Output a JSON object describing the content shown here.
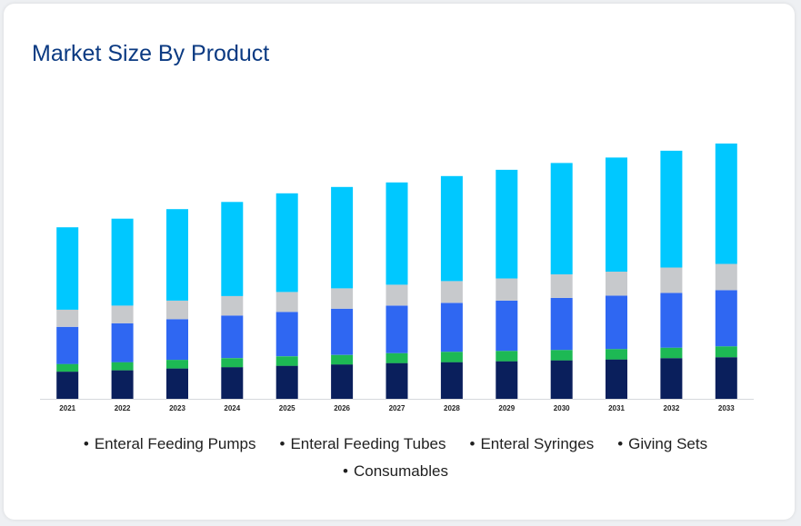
{
  "title": "Market Size By Product",
  "colors": {
    "title": "#0b3a82",
    "consumables": "#0a1f5c",
    "giving_sets": "#1db954",
    "enteral_syringes": "#2f67f2",
    "enteral_feeding_tubes": "#c7c9cc",
    "enteral_feeding_pumps": "#00c8ff"
  },
  "chart_data": {
    "type": "bar",
    "stacked": true,
    "categories": [
      "2021",
      "2022",
      "2023",
      "2024",
      "2025",
      "2026",
      "2027",
      "2028",
      "2029",
      "2030",
      "2031",
      "2032",
      "2033"
    ],
    "series": [
      {
        "name": "Consumables",
        "color": "#0a1f5c",
        "values": [
          30,
          31.5,
          33.5,
          35,
          36.5,
          38,
          39.5,
          40.5,
          41.5,
          42.5,
          43.5,
          45,
          46
        ]
      },
      {
        "name": "Giving Sets",
        "color": "#1db954",
        "values": [
          8.5,
          9,
          9.5,
          10,
          10.5,
          10.5,
          11,
          11.5,
          11.5,
          11.5,
          11.5,
          11.5,
          12
        ]
      },
      {
        "name": "Enteral Syringes",
        "color": "#2f67f2",
        "values": [
          41,
          43,
          45,
          47,
          49,
          51,
          52.5,
          54,
          55.5,
          57.5,
          59,
          60.5,
          62
        ]
      },
      {
        "name": "Enteral Feeding Tubes",
        "color": "#c7c9cc",
        "values": [
          19,
          19.5,
          20.5,
          21.5,
          22,
          22.5,
          23,
          24,
          24.5,
          26,
          26.5,
          28,
          29
        ]
      },
      {
        "name": "Enteral Feeding Pumps",
        "color": "#00c8ff",
        "values": [
          91,
          96,
          101,
          104,
          109,
          112,
          113,
          116,
          120,
          123,
          126,
          129,
          133
        ]
      }
    ],
    "legend_order": [
      "Enteral Feeding Pumps",
      "Enteral Feeding Tubes",
      "Enteral Syringes",
      "Giving Sets",
      "Consumables"
    ],
    "ylim": [
      0,
      290
    ],
    "grid": false,
    "legend_position": "bottom"
  }
}
